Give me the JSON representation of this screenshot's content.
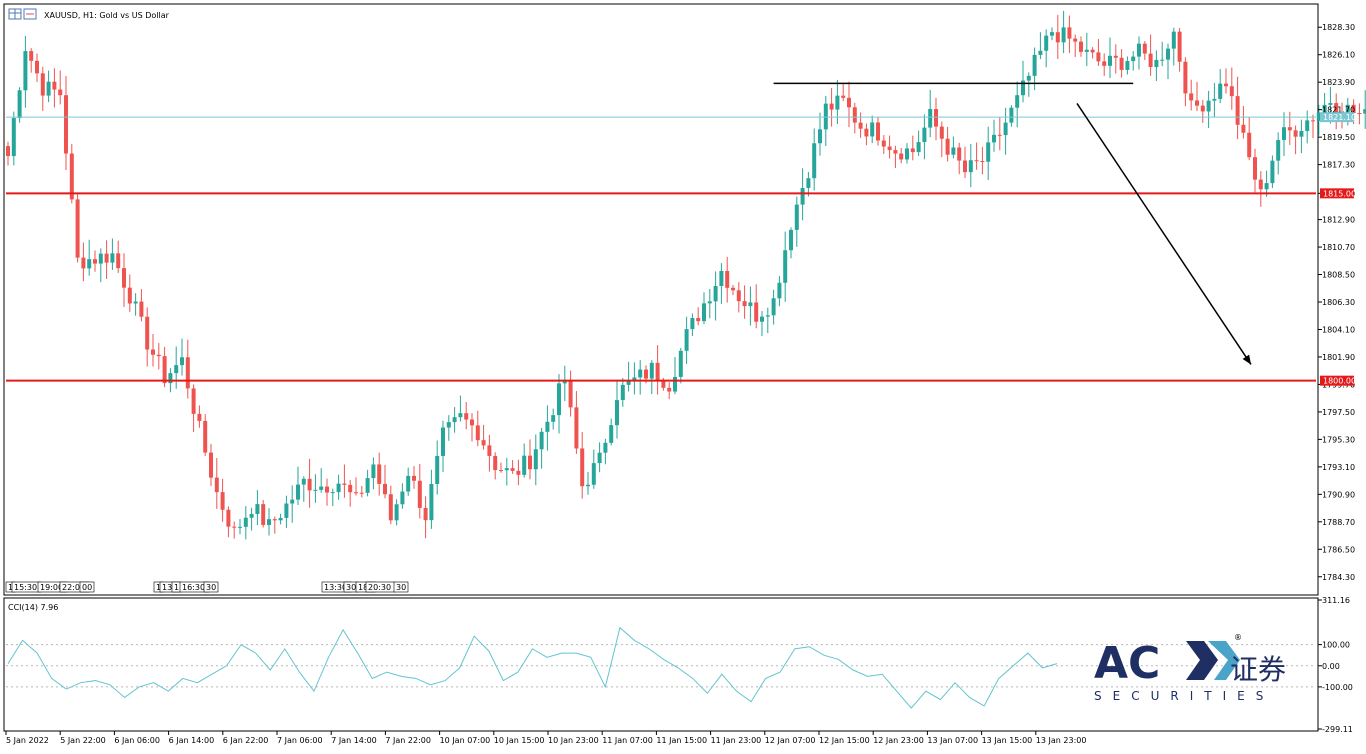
{
  "window": {
    "symbol_label": "XAUUSD, H1:  Gold vs US Dollar",
    "window_icon": "chart-window-icon"
  },
  "colors": {
    "bull": "#26a69a",
    "bear": "#ef5350",
    "support": "#e41a1a",
    "current": "#7cc7d3",
    "cci": "#63c4cf",
    "logo": "#1f2f63"
  },
  "chart_data": [
    {
      "type": "candlestick",
      "title": "XAUUSD, H1:  Gold vs US Dollar",
      "ylim": [
        1783.0,
        1830.0
      ],
      "y_ticks": [
        "1828.30",
        "1826.10",
        "1823.90",
        "1821.70",
        "1819.50",
        "1817.30",
        "1815.00",
        "1812.90",
        "1810.70",
        "1808.50",
        "1806.30",
        "1804.10",
        "1801.90",
        "1799.70",
        "1797.50",
        "1795.30",
        "1793.10",
        "1790.90",
        "1788.70",
        "1786.50",
        "1784.30"
      ],
      "x_labels": [
        "5 Jan 2022",
        "5 Jan 22:00",
        "6 Jan 06:00",
        "6 Jan 14:00",
        "6 Jan 22:00",
        "7 Jan 06:00",
        "7 Jan 14:00",
        "7 Jan 22:00",
        "10 Jan 07:00",
        "10 Jan 15:00",
        "10 Jan 23:00",
        "11 Jan 07:00",
        "11 Jan 15:00",
        "11 Jan 23:00",
        "12 Jan 07:00",
        "12 Jan 15:00",
        "12 Jan 23:00",
        "13 Jan 07:00",
        "13 Jan 15:00",
        "13 Jan 23:00"
      ],
      "levels": [
        {
          "label": "1815.00",
          "value": 1815.0,
          "color": "#e41a1a"
        },
        {
          "label": "1800.00",
          "value": 1800.0,
          "color": "#e41a1a"
        }
      ],
      "current_price": {
        "label": "1821.10",
        "value": 1821.1
      },
      "resistance_line": {
        "value": 1823.8,
        "from_index": 132,
        "to_index": 194
      },
      "forecast_arrow": {
        "from_value": 1822.2,
        "to_value": 1801.3,
        "from_index": 180,
        "to_index": 208
      },
      "ohlc_anchors": [
        1818.0,
        1826.8,
        1823.5,
        1823.0,
        1809.6,
        1809.8,
        1810.1,
        1806.9,
        1803.1,
        1800.3,
        1801.6,
        1796.0,
        1791.0,
        1787.8,
        1790.0,
        1788.3,
        1790.0,
        1791.9,
        1791.6,
        1791.9,
        1790.3,
        1793.3,
        1788.9,
        1792.8,
        1789.2,
        1795.5,
        1797.0,
        1796.0,
        1793.3,
        1792.4,
        1793.7,
        1796.8,
        1800.1,
        1791.6,
        1793.6,
        1799.0,
        1800.0,
        1800.9,
        1799.8,
        1803.6,
        1806.2,
        1808.8,
        1806.8,
        1805.3,
        1806.4,
        1812.7,
        1817.0,
        1821.8,
        1822.3,
        1820.4,
        1819.9,
        1818.5,
        1818.4,
        1821.1,
        1818.7,
        1816.7,
        1817.6,
        1819.8,
        1822.4,
        1825.3,
        1828.0,
        1827.3,
        1826.1,
        1825.3,
        1825.6,
        1826.2,
        1825.4,
        1827.9,
        1821.7,
        1822.6,
        1824.0,
        1819.2,
        1814.8,
        1819.4,
        1820.2,
        1821.2,
        1822.5,
        1821.7,
        1821.1
      ],
      "ohlc_anchor_index_step": 3,
      "hidden_label_row": [
        "1",
        "15:30",
        "19:00",
        "22:00",
        "00",
        "1",
        "13:",
        "1",
        "16:30",
        "30",
        "13:30",
        "30",
        "18:",
        "20:30",
        "30"
      ]
    },
    {
      "type": "line",
      "title": "CCI(14) 7.96",
      "ylim": [
        -299.11,
        311.16
      ],
      "y_ticks": [
        "311.16",
        "100.00",
        "0.00",
        "-100.00",
        "-299.11"
      ],
      "reference_levels": [
        100,
        0,
        -100
      ],
      "values": [
        10,
        120,
        60,
        -60,
        -110,
        -80,
        -70,
        -90,
        -150,
        -100,
        -80,
        -120,
        -60,
        -80,
        -40,
        0,
        100,
        60,
        -20,
        80,
        -30,
        -120,
        40,
        170,
        60,
        -60,
        -30,
        -50,
        -60,
        -90,
        -70,
        -10,
        140,
        70,
        -70,
        -30,
        80,
        40,
        60,
        60,
        40,
        -100,
        180,
        120,
        80,
        30,
        -10,
        -60,
        -130,
        -40,
        -120,
        -170,
        -60,
        -30,
        80,
        90,
        50,
        30,
        -20,
        -50,
        -40,
        -120,
        -200,
        -120,
        -160,
        -80,
        -150,
        -190,
        -60,
        0,
        60,
        -10,
        10
      ]
    }
  ],
  "cci_header": "CCI(14) 7.96",
  "logo": {
    "main_text": "AC",
    "registered": "®",
    "cn_text": "证券",
    "sub_text": "SECURITIES"
  }
}
